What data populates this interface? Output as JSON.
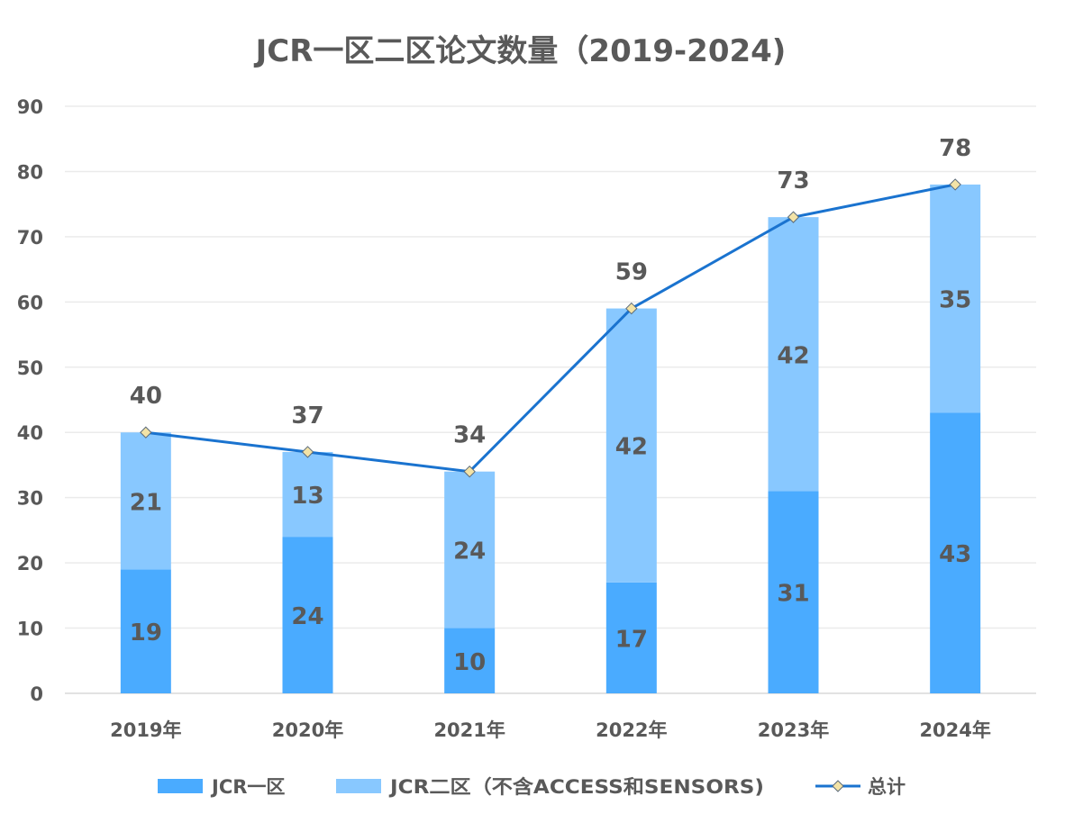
{
  "chart_data": {
    "type": "bar",
    "stacked": true,
    "title": "JCR一区二区论文数量（2019-2024)",
    "categories": [
      "2019年",
      "2020年",
      "2021年",
      "2022年",
      "2023年",
      "2024年"
    ],
    "series": [
      {
        "name": "JCR一区",
        "type": "bar",
        "color": "#4aabff",
        "values": [
          19,
          24,
          10,
          17,
          31,
          43
        ]
      },
      {
        "name": "JCR二区（不含ACCESS和SENSORS)",
        "type": "bar",
        "color": "#88c8ff",
        "values": [
          21,
          13,
          24,
          42,
          42,
          35
        ]
      },
      {
        "name": "总计",
        "type": "line",
        "color": "#1a73cf",
        "marker_color": "#f3e3a6",
        "values": [
          40,
          37,
          34,
          59,
          73,
          78
        ]
      }
    ],
    "ylim": [
      0,
      90
    ],
    "yticks": [
      0,
      10,
      20,
      30,
      40,
      50,
      60,
      70,
      80,
      90
    ],
    "xlabel": "",
    "ylabel": "",
    "grid": true,
    "legend_position": "bottom"
  }
}
